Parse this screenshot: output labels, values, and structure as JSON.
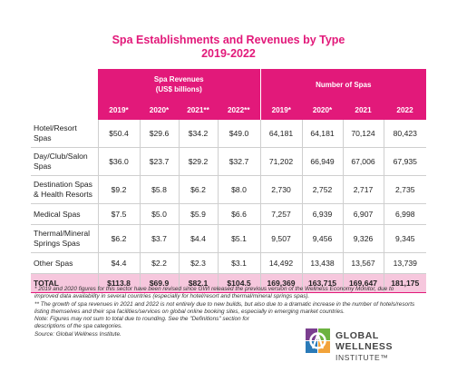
{
  "title_line1": "Spa Establishments and Revenues by Type",
  "title_line2": "2019-2022",
  "group_revenue": "Spa Revenues",
  "group_revenue_sub": "(US$ billions)",
  "group_spas": "Number of Spas",
  "rev_cols": [
    "2019*",
    "2020*",
    "2021**",
    "2022**"
  ],
  "spa_cols": [
    "2019*",
    "2020*",
    "2021",
    "2022"
  ],
  "rows": [
    {
      "label1": "Hotel/Resort",
      "label2": "Spas",
      "v": [
        "$50.4",
        "$29.6",
        "$34.2",
        "$49.0",
        "64,181",
        "64,181",
        "70,124",
        "80,423"
      ]
    },
    {
      "label1": "Day/Club/Salon",
      "label2": "Spas",
      "v": [
        "$36.0",
        "$23.7",
        "$29.2",
        "$32.7",
        "71,202",
        "66,949",
        "67,006",
        "67,935"
      ]
    },
    {
      "label1": "Destination Spas",
      "label2": "& Health Resorts",
      "v": [
        "$9.2",
        "$5.8",
        "$6.2",
        "$8.0",
        "2,730",
        "2,752",
        "2,717",
        "2,735"
      ]
    },
    {
      "label1": "Medical Spas",
      "label2": "",
      "v": [
        "$7.5",
        "$5.0",
        "$5.9",
        "$6.6",
        "7,257",
        "6,939",
        "6,907",
        "6,998"
      ]
    },
    {
      "label1": "Thermal/Mineral",
      "label2": "Springs Spas",
      "v": [
        "$6.2",
        "$3.7",
        "$4.4",
        "$5.1",
        "9,507",
        "9,456",
        "9,326",
        "9,345"
      ]
    },
    {
      "label1": "Other Spas",
      "label2": "",
      "v": [
        "$4.4",
        "$2.2",
        "$2.3",
        "$3.1",
        "14,492",
        "13,438",
        "13,567",
        "13,739"
      ]
    }
  ],
  "total": {
    "label": "TOTAL",
    "v": [
      "$113.8",
      "$69.9",
      "$82.1",
      "$104.5",
      "169,369",
      "163,715",
      "169,647",
      "181,175"
    ]
  },
  "notes": [
    "* 2019 and 2020 figures for this sector have been revised since GWI released the previous version of the Wellness Economy Monitor, due to improved data availability in several countries (especially for hotel/resort and thermal/mineral springs spas).",
    "** The growth of spa revenues in 2021 and 2022 is not entirely due to new builds, but also due to a dramatic increase in the number of hotels/resorts listing themselves and their spa facilities/services on global online booking sites, especially in emerging market countries.",
    "Note: Figures may not sum to total due to rounding. See the \"Definitions\" section for descriptions of the spa categories.",
    "Source: Global Wellness Institute."
  ],
  "logo": {
    "line1": "GLOBAL WELLNESS",
    "line2": "INSTITUTE™"
  }
}
